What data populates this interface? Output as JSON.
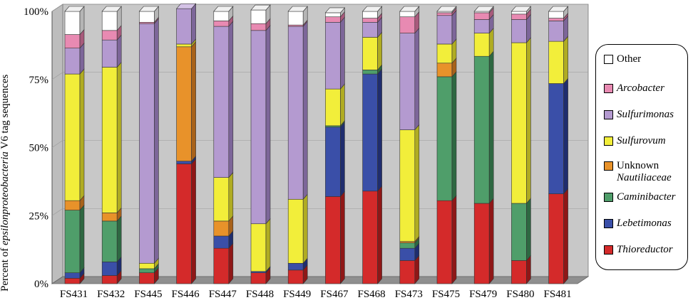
{
  "chart_data": {
    "type": "bar",
    "stacked": true,
    "three_d": true,
    "ylabel_prefix": "Percent of ",
    "ylabel_italic": "epsilonproteobacteria",
    "ylabel_suffix": " V6 tag sequences",
    "yticks": [
      "0%",
      "25%",
      "50%",
      "75%",
      "100%"
    ],
    "ylim": [
      0,
      100
    ],
    "categories": [
      "FS431",
      "FS432",
      "FS445",
      "FS446",
      "FS447",
      "FS448",
      "FS449",
      "FS467",
      "FS468",
      "FS473",
      "FS475",
      "FS479",
      "FS480",
      "FS481"
    ],
    "series": [
      {
        "name": "Thioreductor",
        "italic": true,
        "color": "#d42a2a",
        "side": "#8f1717",
        "top": "#e86060",
        "values": [
          2,
          3,
          4,
          44,
          13,
          4,
          5,
          32,
          34,
          8.5,
          30.5,
          29.5,
          8.5,
          33
        ]
      },
      {
        "name": "Lebetimonas",
        "italic": true,
        "color": "#3a4fa8",
        "side": "#1f2d6e",
        "top": "#6a7dd0",
        "values": [
          2,
          5,
          0,
          1,
          4.5,
          0.5,
          2.5,
          25.5,
          43,
          4.5,
          0,
          0,
          0,
          40.5
        ]
      },
      {
        "name": "Caminibacter",
        "italic": true,
        "color": "#4f9e6a",
        "side": "#2e6842",
        "top": "#7dc493",
        "values": [
          23,
          15,
          1.5,
          0,
          0,
          0,
          0,
          0.5,
          1.5,
          2,
          45.5,
          54,
          21,
          0
        ]
      },
      {
        "name": "Unknown",
        "name2": "Nautiliaceae",
        "italic": false,
        "color": "#e8922a",
        "side": "#a8621a",
        "top": "#f2b265",
        "values": [
          3.5,
          3,
          0,
          42,
          5.5,
          0,
          0,
          0,
          0,
          0.5,
          5,
          0,
          0,
          0
        ]
      },
      {
        "name": "Sulfurovum",
        "italic": true,
        "color": "#f2ee3a",
        "side": "#b0ac22",
        "top": "#f8f590",
        "values": [
          46.5,
          53.5,
          2,
          1,
          16,
          17.5,
          23.5,
          13.5,
          12,
          41,
          7,
          8.5,
          59,
          15.5
        ]
      },
      {
        "name": "Sulfurimonas",
        "italic": true,
        "color": "#b49ad0",
        "side": "#7d6699",
        "top": "#d4c2e6",
        "values": [
          9.5,
          10,
          88,
          13,
          55.5,
          71,
          63.5,
          24.5,
          5.5,
          35.5,
          10.5,
          5,
          8.5,
          7.5
        ]
      },
      {
        "name": "Arcobacter",
        "italic": true,
        "color": "#e88ab2",
        "side": "#a85a7c",
        "top": "#f2b5cf",
        "values": [
          5,
          3.5,
          0.5,
          0,
          2,
          2.5,
          0.5,
          2,
          1.5,
          6,
          1,
          2.5,
          2,
          1
        ]
      },
      {
        "name": "Other",
        "italic": false,
        "color": "#ffffff",
        "side": "#b5b5b5",
        "top": "#f0f0f0",
        "values": [
          8.5,
          7,
          4,
          0,
          3.5,
          5,
          5,
          1.5,
          2.5,
          2,
          0.5,
          0.5,
          1,
          2.5
        ]
      }
    ],
    "legend_position": "right"
  }
}
